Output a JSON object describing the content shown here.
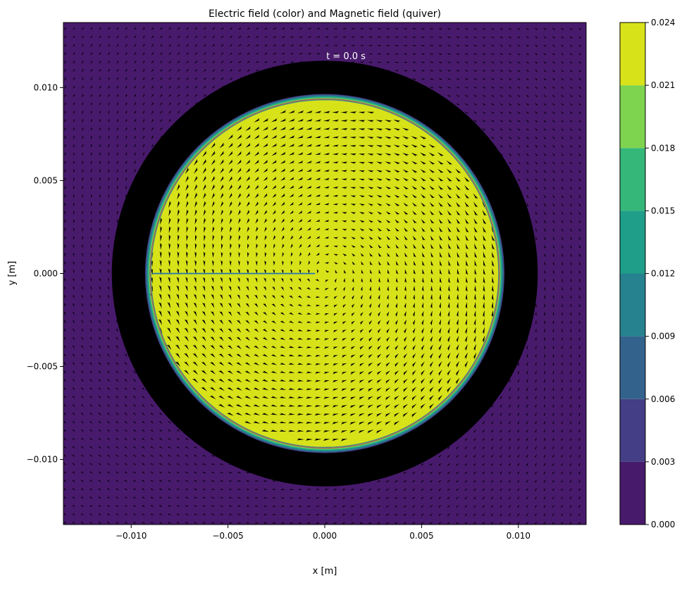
{
  "chart_data": {
    "type": "heatmap",
    "title": "Electric field (color) and Magnetic field (quiver)",
    "xlabel": "x [m]",
    "ylabel": "y [m]",
    "xlim": [
      -0.0135,
      0.0135
    ],
    "ylim": [
      -0.0135,
      0.0135
    ],
    "xticks": [
      -0.01,
      -0.005,
      0.0,
      0.005,
      0.01
    ],
    "xtick_labels": [
      "−0.010",
      "−0.005",
      "0.000",
      "0.005",
      "0.010"
    ],
    "yticks": [
      -0.01,
      -0.005,
      0.0,
      0.005,
      0.01
    ],
    "ytick_labels": [
      "−0.010",
      "−0.005",
      "0.000",
      "0.005",
      "0.010"
    ],
    "annotation": "t = 0.0 s",
    "grid": false,
    "colorbar": {
      "levels": [
        0.0,
        0.003,
        0.006,
        0.009,
        0.012,
        0.015,
        0.018,
        0.021,
        0.024
      ],
      "tick_labels": [
        "0.000",
        "0.003",
        "0.006",
        "0.009",
        "0.012",
        "0.015",
        "0.018",
        "0.021",
        "0.024"
      ],
      "colors": [
        "#481a6c",
        "#433e85",
        "#33638d",
        "#26828e",
        "#1f9e89",
        "#35b779",
        "#7ed34f",
        "#d8e219"
      ]
    },
    "regions": {
      "inner_conductor_radius": 0.009,
      "inner_field_color": "#d8e219",
      "outer_conductor_inner_radius": 0.009,
      "outer_conductor_outer_radius": 0.011,
      "outer_conductor_color": "#000000",
      "background_color": "#481a6c"
    },
    "radius_line": {
      "x": [
        -0.0089,
        -0.0005
      ],
      "y": [
        0.0,
        0.0
      ],
      "color": "#1f77b4"
    },
    "quiver": {
      "pattern": "circulating",
      "color": "#000000"
    }
  }
}
